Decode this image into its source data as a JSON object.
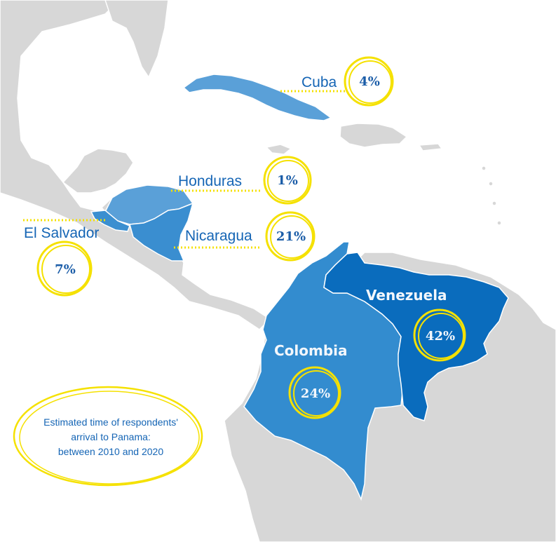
{
  "colors": {
    "sea": "#ffffff",
    "land": "#d7d7d7",
    "colombia": "#338ccf",
    "venezuela": "#0a6cbd",
    "cuba": "#5aa0d8",
    "honduras": "#5aa0d8",
    "el_salvador": "#3b8fd0",
    "nicaragua": "#3a8ed0",
    "accent_yellow": "#f5e100",
    "label_blue": "#1565b5"
  },
  "countries": {
    "cuba": {
      "name": "Cuba",
      "percent": "4%"
    },
    "honduras": {
      "name": "Honduras",
      "percent": "1%"
    },
    "el_salvador": {
      "name": "El Salvador",
      "percent": "7%"
    },
    "nicaragua": {
      "name": "Nicaragua",
      "percent": "21%"
    },
    "colombia": {
      "name": "Colombia",
      "percent": "24%"
    },
    "venezuela": {
      "name": "Venezuela",
      "percent": "42%"
    }
  },
  "note": {
    "line1": "Estimated time of respondents'",
    "line2": "arrival to Panama:",
    "line3": "between 2010 and 2020"
  }
}
